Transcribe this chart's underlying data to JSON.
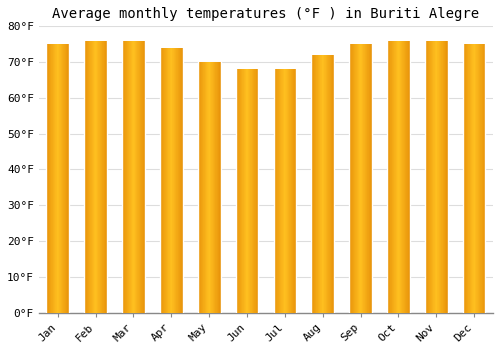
{
  "title": "Average monthly temperatures (°F ) in Buriti Alegre",
  "months": [
    "Jan",
    "Feb",
    "Mar",
    "Apr",
    "May",
    "Jun",
    "Jul",
    "Aug",
    "Sep",
    "Oct",
    "Nov",
    "Dec"
  ],
  "values": [
    75,
    76,
    76,
    74,
    70,
    68,
    68,
    72,
    75,
    76,
    76,
    75
  ],
  "bar_color_left": "#E8930A",
  "bar_color_center": "#FFC020",
  "bar_color_right": "#E8930A",
  "ylim": [
    0,
    80
  ],
  "yticks": [
    0,
    10,
    20,
    30,
    40,
    50,
    60,
    70,
    80
  ],
  "ytick_labels": [
    "0°F",
    "10°F",
    "20°F",
    "30°F",
    "40°F",
    "50°F",
    "60°F",
    "70°F",
    "80°F"
  ],
  "background_color": "#FFFFFF",
  "grid_color": "#DDDDDD",
  "title_fontsize": 10,
  "tick_fontsize": 8,
  "bar_width": 0.6
}
